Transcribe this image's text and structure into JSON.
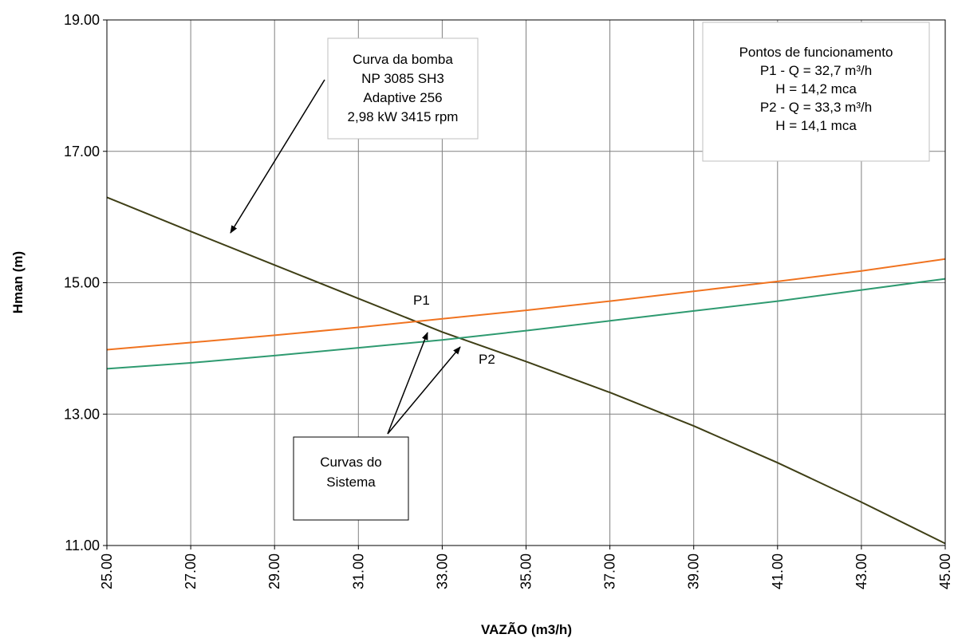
{
  "chart_data": {
    "type": "line",
    "xlabel": "VAZÃO (m3/h)",
    "ylabel": "Hman (m)",
    "xlim": [
      25,
      45
    ],
    "ylim": [
      11,
      19
    ],
    "x_ticks": [
      "25.00",
      "27.00",
      "29.00",
      "31.00",
      "33.00",
      "35.00",
      "37.00",
      "39.00",
      "41.00",
      "43.00",
      "45.00"
    ],
    "y_ticks": [
      "11.00",
      "13.00",
      "15.00",
      "17.00",
      "19.00"
    ],
    "grid": true,
    "series": [
      {
        "color": "#3f3f16",
        "x": [
          25,
          27,
          29,
          31,
          33,
          35,
          37,
          39,
          41,
          43,
          45
        ],
        "y": [
          16.3,
          15.78,
          15.27,
          14.76,
          14.25,
          13.8,
          13.33,
          12.82,
          12.26,
          11.66,
          11.03
        ]
      },
      {
        "color": "#f07320",
        "x": [
          25,
          27,
          29,
          31,
          33,
          35,
          37,
          39,
          41,
          43,
          45
        ],
        "y": [
          13.98,
          14.09,
          14.2,
          14.32,
          14.45,
          14.58,
          14.72,
          14.87,
          15.02,
          15.18,
          15.36
        ]
      },
      {
        "color": "#2e9a70",
        "x": [
          25,
          27,
          29,
          31,
          33,
          35,
          37,
          39,
          41,
          43,
          45
        ],
        "y": [
          13.69,
          13.78,
          13.89,
          14.01,
          14.13,
          14.27,
          14.42,
          14.57,
          14.72,
          14.89,
          15.06
        ]
      }
    ],
    "annotations": {
      "pump_box": [
        "Curva da bomba",
        "NP 3085 SH3",
        "Adaptive 256",
        "2,98 kW 3415 rpm"
      ],
      "points_box": [
        "Pontos de funcionamento",
        "P1 - Q = 32,7 m³/h",
        "H = 14,2 mca",
        "P2 - Q = 33,3 m³/h",
        "H = 14,1 mca"
      ],
      "system_box": [
        "Curvas do",
        "Sistema"
      ],
      "p1_label": "P1",
      "p2_label": "P2"
    }
  }
}
